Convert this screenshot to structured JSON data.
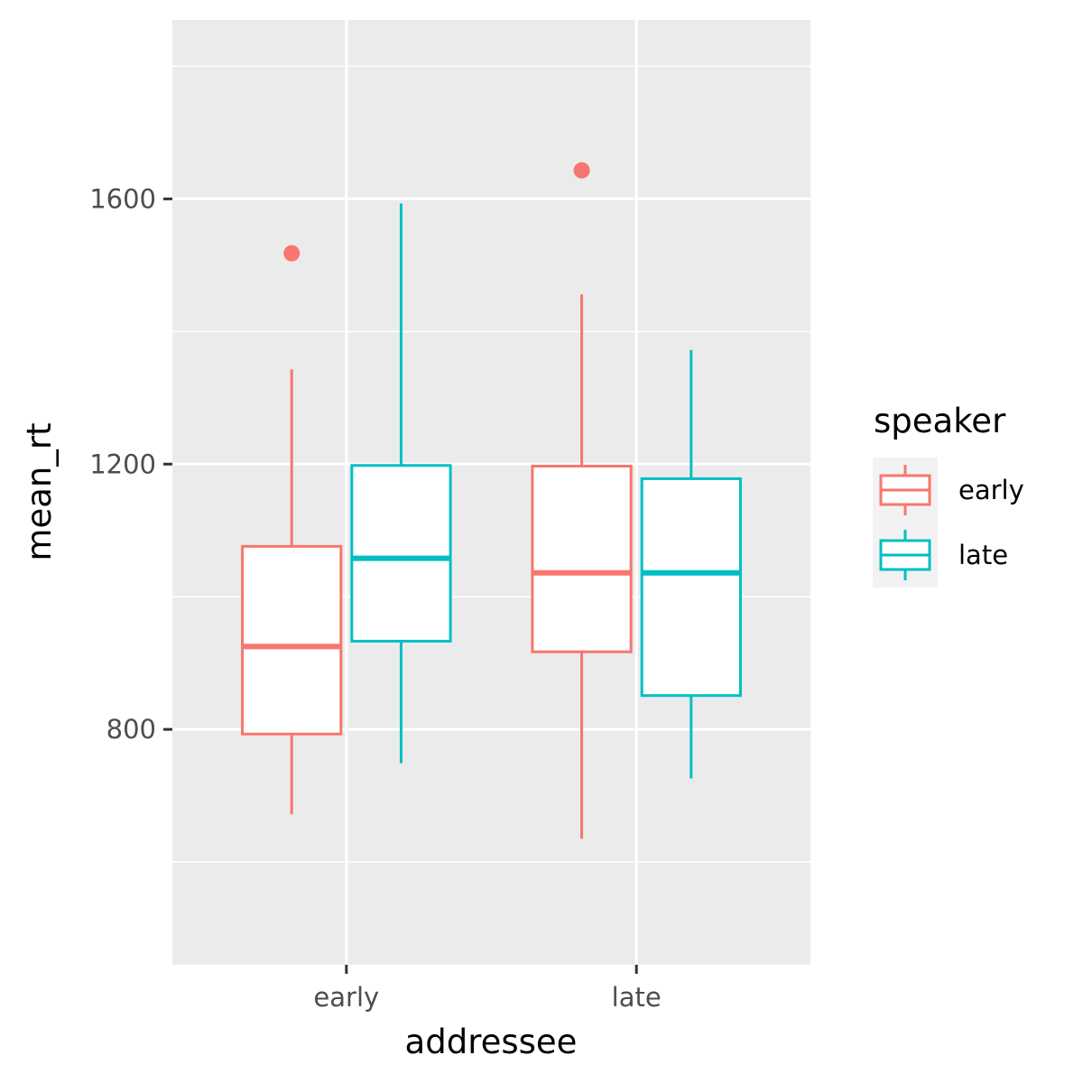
{
  "chart_data": {
    "type": "boxplot",
    "xlabel": "addressee",
    "ylabel": "mean_rt",
    "categories": [
      "early",
      "late"
    ],
    "ylim": [
      445,
      1870
    ],
    "yticks": [
      800,
      1200,
      1600
    ],
    "grid": true,
    "legend": {
      "title": "speaker",
      "position": "right",
      "entries": [
        "early",
        "late"
      ]
    },
    "series": [
      {
        "name": "early",
        "color": "#F8766D",
        "boxes": [
          {
            "category": "early",
            "lower_whisker": 672,
            "q1": 793,
            "median": 925,
            "q3": 1076,
            "upper_whisker": 1343,
            "outliers": [
              1518
            ]
          },
          {
            "category": "late",
            "lower_whisker": 635,
            "q1": 917,
            "median": 1036,
            "q3": 1197,
            "upper_whisker": 1456,
            "outliers": [
              1643
            ]
          }
        ]
      },
      {
        "name": "late",
        "color": "#00BFC4",
        "boxes": [
          {
            "category": "early",
            "lower_whisker": 749,
            "q1": 933,
            "median": 1058,
            "q3": 1198,
            "upper_whisker": 1593,
            "outliers": []
          },
          {
            "category": "late",
            "lower_whisker": 726,
            "q1": 851,
            "median": 1036,
            "q3": 1178,
            "upper_whisker": 1372,
            "outliers": []
          }
        ]
      }
    ]
  }
}
